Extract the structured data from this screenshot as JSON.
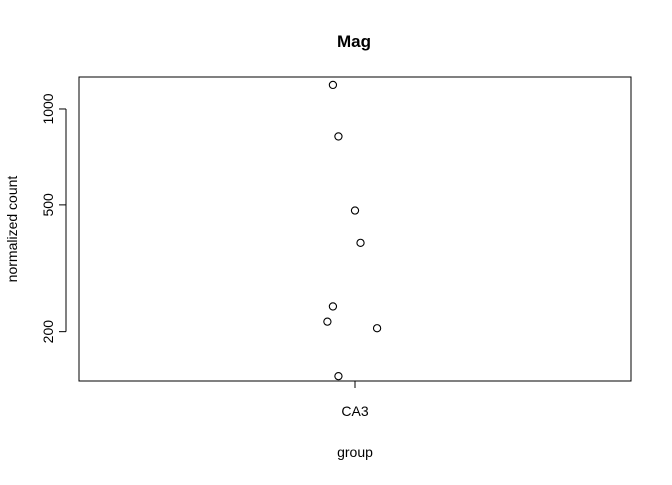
{
  "chart_data": {
    "type": "scatter",
    "title": "Mag",
    "xlabel": "group",
    "ylabel": "normalized count",
    "categories": [
      "CA3"
    ],
    "y_scale": "log",
    "ylim": [
      140,
      1260
    ],
    "y_ticks": [
      200,
      500,
      1000
    ],
    "grid": false,
    "legend": "none",
    "series": [
      {
        "category": "CA3",
        "points": [
          {
            "jitter": -0.04,
            "y": 1190
          },
          {
            "jitter": -0.03,
            "y": 820
          },
          {
            "jitter": 0.0,
            "y": 480
          },
          {
            "jitter": 0.01,
            "y": 380
          },
          {
            "jitter": -0.04,
            "y": 240
          },
          {
            "jitter": -0.05,
            "y": 215
          },
          {
            "jitter": 0.04,
            "y": 205
          },
          {
            "jitter": -0.03,
            "y": 145
          }
        ]
      }
    ],
    "point_style": {
      "shape": "open-circle",
      "stroke": "#000000",
      "fill": "#ffffff"
    }
  }
}
